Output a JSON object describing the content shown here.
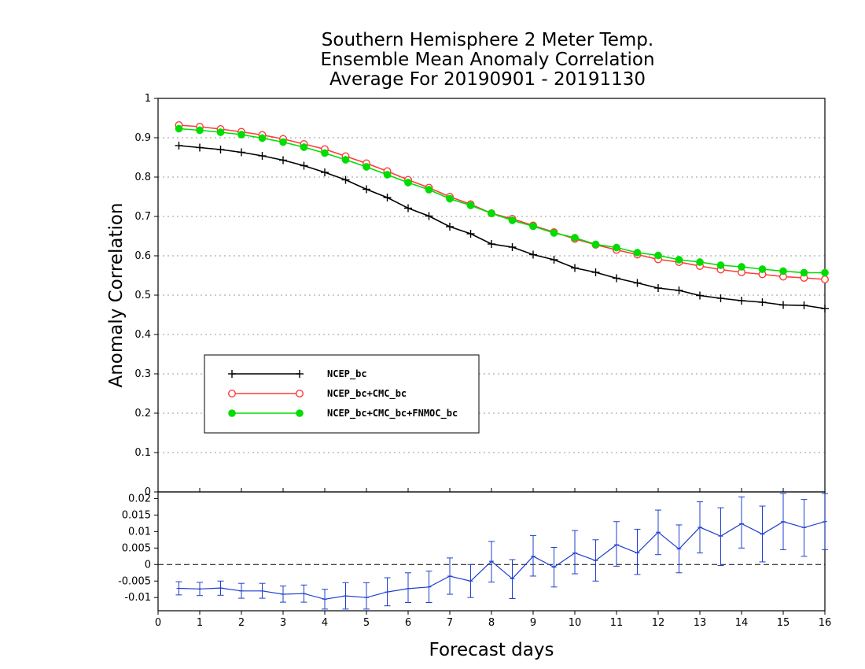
{
  "chart_data": [
    {
      "type": "line",
      "title": [
        "Southern Hemisphere 2 Meter Temp.",
        "Ensemble Mean Anomaly Correlation",
        "Average For 20190901 - 20191130"
      ],
      "xlabel": "Forecast days",
      "ylabel": "Anomaly Correlation",
      "xlim": [
        0,
        16
      ],
      "ylim": [
        0,
        1
      ],
      "yticks": [
        "0",
        "0.1",
        "0.2",
        "0.3",
        "0.4",
        "0.5",
        "0.6",
        "0.7",
        "0.8",
        "0.9",
        "1"
      ],
      "grid": true,
      "legend_position": "lower-left",
      "x": [
        0.5,
        1,
        1.5,
        2,
        2.5,
        3,
        3.5,
        4,
        4.5,
        5,
        5.5,
        6,
        6.5,
        7,
        7.5,
        8,
        8.5,
        9,
        9.5,
        10,
        10.5,
        11,
        11.5,
        12,
        12.5,
        13,
        13.5,
        14,
        14.5,
        15,
        15.5,
        16
      ],
      "series": [
        {
          "name": "NCEP_bc",
          "color": "#000000",
          "marker": "plus",
          "values": [
            0.88,
            0.875,
            0.87,
            0.863,
            0.854,
            0.843,
            0.829,
            0.812,
            0.793,
            0.769,
            0.748,
            0.721,
            0.701,
            0.674,
            0.656,
            0.63,
            0.622,
            0.603,
            0.59,
            0.569,
            0.558,
            0.543,
            0.531,
            0.518,
            0.512,
            0.499,
            0.492,
            0.486,
            0.482,
            0.475,
            0.474,
            0.466
          ]
        },
        {
          "name": "NCEP_bc+CMC_bc",
          "color": "#ff3b3b",
          "marker": "open-circle",
          "values": [
            0.932,
            0.928,
            0.922,
            0.915,
            0.907,
            0.897,
            0.884,
            0.871,
            0.853,
            0.835,
            0.815,
            0.793,
            0.773,
            0.75,
            0.731,
            0.708,
            0.694,
            0.677,
            0.66,
            0.643,
            0.628,
            0.615,
            0.603,
            0.591,
            0.584,
            0.574,
            0.565,
            0.558,
            0.553,
            0.547,
            0.544,
            0.54
          ]
        },
        {
          "name": "NCEP_bc+CMC_bc+FNMOC_bc",
          "color": "#00dd00",
          "marker": "filled-circle",
          "values": [
            0.923,
            0.919,
            0.914,
            0.908,
            0.899,
            0.889,
            0.876,
            0.861,
            0.844,
            0.826,
            0.806,
            0.786,
            0.768,
            0.745,
            0.728,
            0.708,
            0.69,
            0.675,
            0.658,
            0.646,
            0.629,
            0.621,
            0.608,
            0.601,
            0.59,
            0.584,
            0.576,
            0.572,
            0.566,
            0.561,
            0.557,
            0.557
          ]
        }
      ]
    },
    {
      "type": "line",
      "xlabel": "Forecast days",
      "xlim": [
        0,
        16
      ],
      "ylim": [
        -0.014,
        0.022
      ],
      "xticks": [
        "0",
        "1",
        "2",
        "3",
        "4",
        "5",
        "6",
        "7",
        "8",
        "9",
        "10",
        "11",
        "12",
        "13",
        "14",
        "15",
        "16"
      ],
      "yticks": [
        "-0.01",
        "-0.005",
        "0",
        "0.005",
        "0.01",
        "0.015",
        "0.02"
      ],
      "ytick_values": [
        -0.01,
        -0.005,
        0,
        0.005,
        0.01,
        0.015,
        0.02
      ],
      "series": [
        {
          "color": "#1f3fd0",
          "error_bars": true,
          "x": [
            0.5,
            1,
            1.5,
            2,
            2.5,
            3,
            3.5,
            4,
            4.5,
            5,
            5.5,
            6,
            6.5,
            7,
            7.5,
            8,
            8.5,
            9,
            9.5,
            10,
            10.5,
            11,
            11.5,
            12,
            12.5,
            13,
            13.5,
            14,
            14.5,
            15,
            15.5,
            16
          ],
          "values": [
            -0.0072,
            -0.0074,
            -0.0071,
            -0.008,
            -0.008,
            -0.009,
            -0.0088,
            -0.0105,
            -0.0095,
            -0.01,
            -0.0083,
            -0.0073,
            -0.0068,
            -0.0035,
            -0.005,
            0.001,
            -0.0043,
            0.0025,
            -0.0008,
            0.0035,
            0.0012,
            0.006,
            0.0035,
            0.0098,
            0.0047,
            0.0113,
            0.0086,
            0.0124,
            0.0092,
            0.013,
            0.0112,
            0.013
          ],
          "err_low": [
            -0.0092,
            -0.0094,
            -0.0093,
            -0.0102,
            -0.0102,
            -0.0114,
            -0.0114,
            -0.0135,
            -0.0135,
            -0.0135,
            -0.0125,
            -0.0115,
            -0.0115,
            -0.009,
            -0.01,
            -0.0053,
            -0.0103,
            -0.0035,
            -0.0068,
            -0.0028,
            -0.005,
            -0.0005,
            -0.003,
            0.003,
            -0.0025,
            0.0035,
            -0.0003,
            0.005,
            0.0008,
            0.0045,
            0.0025,
            0.0045
          ],
          "err_high": [
            -0.0052,
            -0.0054,
            -0.005,
            -0.0057,
            -0.0057,
            -0.0065,
            -0.0062,
            -0.0075,
            -0.0055,
            -0.0055,
            -0.004,
            -0.0025,
            -0.002,
            0.002,
            0.0,
            0.007,
            0.0015,
            0.0088,
            0.0052,
            0.0103,
            0.0075,
            0.013,
            0.0107,
            0.0165,
            0.012,
            0.019,
            0.0172,
            0.0205,
            0.0177,
            0.0215,
            0.0197,
            0.0215
          ]
        }
      ]
    }
  ]
}
